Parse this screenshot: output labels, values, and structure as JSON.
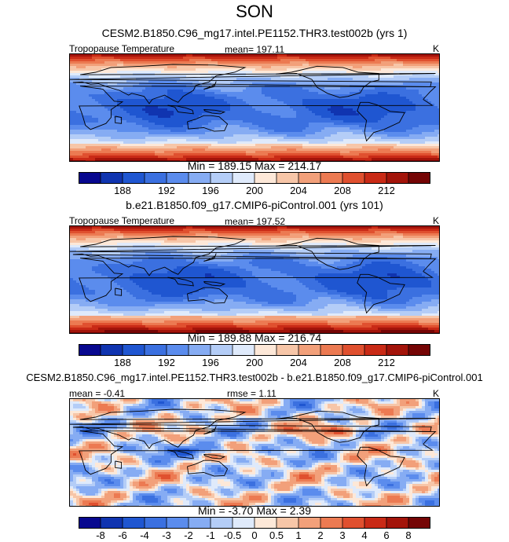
{
  "figure": {
    "season": "SON",
    "panels": [
      {
        "title": "CESM2.B1850.C96_mg17.intel.PE1152.THR3.test002b (yrs 1)",
        "variable": "Tropopause Temperature",
        "stat": "mean= 197.11",
        "units": "K",
        "minmax": "Min = 189.15 Max = 214.17"
      },
      {
        "title": "b.e21.B1850.f09_g17.CMIP6-piControl.001 (yrs 101)",
        "variable": "Tropopause Temperature",
        "stat": "mean= 197.52",
        "units": "K",
        "minmax": "Min = 189.88 Max = 216.74"
      },
      {
        "title": "CESM2.B1850.C96_mg17.intel.PE1152.THR3.test002b - b.e21.B1850.f09_g17.CMIP6-piControl.001",
        "stat_mean": "mean = -0.41",
        "stat_rmse": "rmse =   1.11",
        "units": "K",
        "minmax": "Min =  -3.70 Max =   2.39"
      }
    ]
  },
  "chart_data": [
    {
      "type": "heatmap",
      "title": "CESM2.B1850.C96_mg17.intel.PE1152.THR3.test002b (yrs 1)",
      "variable": "Tropopause Temperature",
      "units": "K",
      "mean": 197.11,
      "min": 189.15,
      "max": 214.17,
      "levels": [
        186,
        188,
        190,
        192,
        194,
        196,
        198,
        200,
        202,
        204,
        206,
        208,
        210,
        212,
        214
      ],
      "tick_labels": [
        "188",
        "192",
        "196",
        "200",
        "204",
        "208",
        "212"
      ],
      "colors": [
        "#08088f",
        "#1034b0",
        "#1f56d1",
        "#3b70e0",
        "#5b8ced",
        "#86acf3",
        "#b4cdf7",
        "#dfeafb",
        "#fde8d8",
        "#f7c6a8",
        "#f2a07a",
        "#ec7a52",
        "#e0502f",
        "#c92a16",
        "#a3140a",
        "#750505"
      ]
    },
    {
      "type": "heatmap",
      "title": "b.e21.B1850.f09_g17.CMIP6-piControl.001 (yrs 101)",
      "variable": "Tropopause Temperature",
      "units": "K",
      "mean": 197.52,
      "min": 189.88,
      "max": 216.74,
      "levels": [
        186,
        188,
        190,
        192,
        194,
        196,
        198,
        200,
        202,
        204,
        206,
        208,
        210,
        212,
        214
      ],
      "tick_labels": [
        "188",
        "192",
        "196",
        "200",
        "204",
        "208",
        "212"
      ],
      "colors": [
        "#08088f",
        "#1034b0",
        "#1f56d1",
        "#3b70e0",
        "#5b8ced",
        "#86acf3",
        "#b4cdf7",
        "#dfeafb",
        "#fde8d8",
        "#f7c6a8",
        "#f2a07a",
        "#ec7a52",
        "#e0502f",
        "#c92a16",
        "#a3140a",
        "#750505"
      ]
    },
    {
      "type": "heatmap",
      "title": "CESM2.B1850.C96_mg17.intel.PE1152.THR3.test002b - b.e21.B1850.f09_g17.CMIP6-piControl.001",
      "units": "K",
      "mean": -0.41,
      "rmse": 1.11,
      "min": -3.7,
      "max": 2.39,
      "levels": [
        -8,
        -6,
        -4,
        -3,
        -2,
        -1,
        -0.5,
        0,
        0.5,
        1,
        2,
        3,
        4,
        6,
        8
      ],
      "tick_labels": [
        "-8",
        "-6",
        "-4",
        "-3",
        "-2",
        "-1",
        "-0.5",
        "0",
        "0.5",
        "1",
        "2",
        "3",
        "4",
        "6",
        "8"
      ],
      "colors": [
        "#08088f",
        "#1034b0",
        "#1f56d1",
        "#3b70e0",
        "#5b8ced",
        "#86acf3",
        "#b4cdf7",
        "#dfeafb",
        "#fde8d8",
        "#f7c6a8",
        "#f2a07a",
        "#ec7a52",
        "#e0502f",
        "#c92a16",
        "#a3140a",
        "#750505"
      ]
    }
  ]
}
